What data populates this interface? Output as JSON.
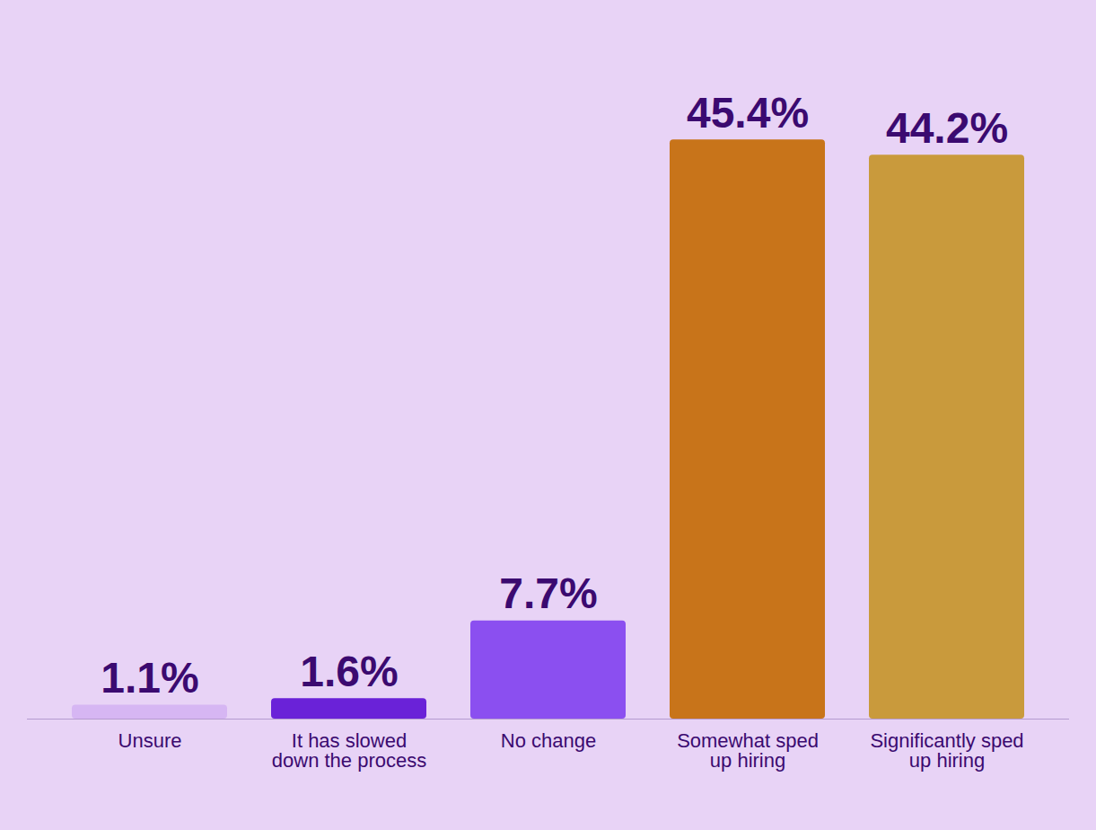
{
  "chart_data": {
    "type": "bar",
    "categories": [
      "Unsure",
      "It has slowed down the process",
      "No change",
      "Somewhat sped up hiring",
      "Significantly sped up hiring"
    ],
    "values": [
      1.1,
      1.6,
      7.7,
      45.4,
      44.2
    ],
    "value_labels": [
      "1.1%",
      "1.6%",
      "7.7%",
      "45.4%",
      "44.2%"
    ],
    "colors": [
      "#d6b6f3",
      "#6a22d8",
      "#8b4ff0",
      "#c8741a",
      "#c99a3c"
    ],
    "ylim": [
      0,
      50
    ],
    "data_labels": true,
    "tick_labels": false
  }
}
